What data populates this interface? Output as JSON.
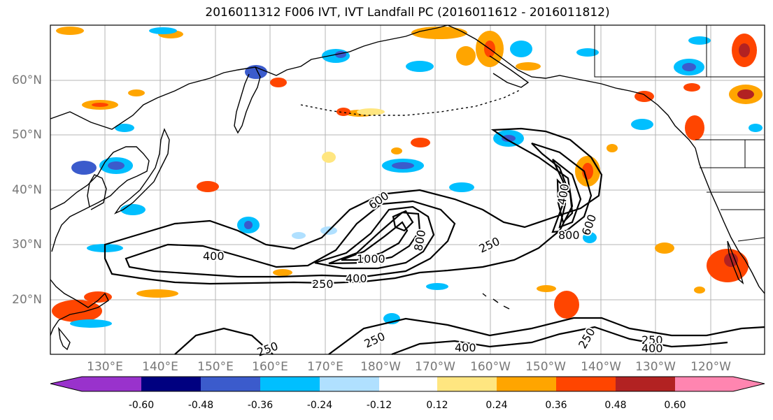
{
  "title": "2016011312 F006 IVT, IVT Landfall PC (2016011612 - 2016011812)",
  "lat_labels": [
    "60°N",
    "50°N",
    "40°N",
    "30°N",
    "20°N"
  ],
  "lon_labels": [
    "130°E",
    "140°E",
    "150°E",
    "160°E",
    "170°E",
    "180°W",
    "170°W",
    "160°W",
    "150°W",
    "140°W",
    "130°W",
    "120°W"
  ],
  "contour_labels": [
    "400",
    "250",
    "400",
    "1000",
    "600",
    "800",
    "250",
    "400",
    "800",
    "600",
    "250",
    "400",
    "250",
    "250",
    "250",
    "400"
  ],
  "colorbar": {
    "colors": [
      "#9932cc",
      "#000080",
      "#3b5bcc",
      "#00bfff",
      "#b0e0ff",
      "#ffffff",
      "#ffe680",
      "#ffa500",
      "#ff4500",
      "#b22222",
      "#ff85b0"
    ],
    "tick_labels": [
      "-0.60",
      "-0.48",
      "-0.36",
      "-0.24",
      "-0.12",
      "0.12",
      "0.24",
      "0.36",
      "0.48",
      "0.60"
    ]
  },
  "colors": {
    "land": "#000000",
    "grid": "#b4b4b4",
    "contour": "#000000"
  }
}
